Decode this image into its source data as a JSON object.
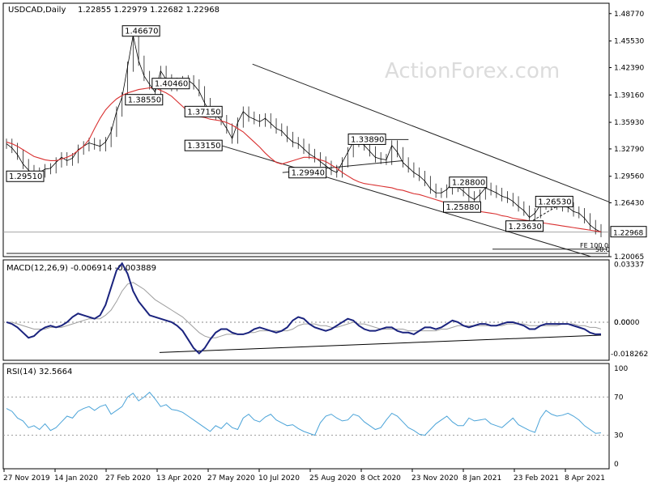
{
  "header": {
    "symbol": "USDCAD,Daily",
    "ohlc": "1.22855 1.22979 1.22682 1.22968"
  },
  "watermark": "ActionForex.com",
  "chart_data": [
    {
      "type": "line",
      "name": "price",
      "ylim": [
        1.2007,
        1.4999
      ],
      "y_ticks": [
        "1.48770",
        "1.45530",
        "1.42390",
        "1.39160",
        "1.35930",
        "1.32790",
        "1.29560",
        "1.26430",
        "1.22968",
        "1.20065"
      ],
      "current_price": "1.22968",
      "series_close": [
        1.334,
        1.329,
        1.321,
        1.31,
        1.303,
        1.296,
        1.3,
        1.304,
        1.305,
        1.312,
        1.318,
        1.314,
        1.317,
        1.327,
        1.331,
        1.335,
        1.333,
        1.331,
        1.336,
        1.348,
        1.372,
        1.389,
        1.425,
        1.462,
        1.432,
        1.414,
        1.404,
        1.395,
        1.42,
        1.41,
        1.402,
        1.406,
        1.408,
        1.409,
        1.404,
        1.396,
        1.382,
        1.371,
        1.368,
        1.362,
        1.352,
        1.34,
        1.359,
        1.372,
        1.366,
        1.363,
        1.36,
        1.364,
        1.358,
        1.352,
        1.349,
        1.342,
        1.336,
        1.334,
        1.328,
        1.322,
        1.318,
        1.313,
        1.308,
        1.303,
        1.3,
        1.312,
        1.324,
        1.336,
        1.338,
        1.332,
        1.325,
        1.318,
        1.316,
        1.315,
        1.332,
        1.324,
        1.312,
        1.306,
        1.3,
        1.296,
        1.29,
        1.281,
        1.276,
        1.276,
        1.28,
        1.288,
        1.283,
        1.278,
        1.272,
        1.268,
        1.274,
        1.282,
        1.279,
        1.276,
        1.272,
        1.27,
        1.266,
        1.26,
        1.255,
        1.247,
        1.252,
        1.262,
        1.265,
        1.262,
        1.262,
        1.26,
        1.259,
        1.254,
        1.252,
        1.246,
        1.238,
        1.233,
        1.2297
      ],
      "ma_red": [
        1.336,
        1.334,
        1.331,
        1.327,
        1.323,
        1.319,
        1.317,
        1.315,
        1.314,
        1.314,
        1.316,
        1.318,
        1.321,
        1.326,
        1.331,
        1.339,
        1.352,
        1.364,
        1.374,
        1.381,
        1.387,
        1.391,
        1.394,
        1.396,
        1.398,
        1.399,
        1.4,
        1.4,
        1.397,
        1.394,
        1.39,
        1.384,
        1.378,
        1.372,
        1.368,
        1.366,
        1.365,
        1.363,
        1.362,
        1.361,
        1.359,
        1.356,
        1.352,
        1.348,
        1.342,
        1.336,
        1.33,
        1.323,
        1.317,
        1.312,
        1.31,
        1.312,
        1.314,
        1.316,
        1.318,
        1.318,
        1.317,
        1.315,
        1.313,
        1.309,
        1.305,
        1.3,
        1.296,
        1.292,
        1.289,
        1.287,
        1.286,
        1.285,
        1.284,
        1.283,
        1.282,
        1.28,
        1.279,
        1.277,
        1.275,
        1.274,
        1.272,
        1.27,
        1.268,
        1.266,
        1.264,
        1.262,
        1.26,
        1.258,
        1.256,
        1.255,
        1.254,
        1.253,
        1.252,
        1.251,
        1.249,
        1.248,
        1.246,
        1.245,
        1.244,
        1.243,
        1.242,
        1.241,
        1.24,
        1.239,
        1.238,
        1.237,
        1.236,
        1.235,
        1.234,
        1.233,
        1.232,
        1.231,
        1.23
      ],
      "annotations": [
        {
          "label": "1.46670",
          "price": 1.4667
        },
        {
          "label": "1.40460",
          "price": 1.4046
        },
        {
          "label": "1.38550",
          "price": 1.3855
        },
        {
          "label": "1.37150",
          "price": 1.3715
        },
        {
          "label": "1.33150",
          "price": 1.3315
        },
        {
          "label": "1.33890",
          "price": 1.3389
        },
        {
          "label": "1.29940",
          "price": 1.2994
        },
        {
          "label": "1.29510",
          "price": 1.2951
        },
        {
          "label": "1.28800",
          "price": 1.288
        },
        {
          "label": "1.25880",
          "price": 1.2588
        },
        {
          "label": "1.26530",
          "price": 1.2653
        },
        {
          "label": "1.23630",
          "price": 1.2363
        }
      ],
      "fib_labels": [
        "FE 100.0",
        "50.0"
      ],
      "colors": {
        "price": "#000000",
        "ma": "#d93030",
        "channel": "#000000",
        "grid": "#9a9a9a"
      }
    },
    {
      "type": "line",
      "name": "macd",
      "title": "MACD(12,26,9) -0.006914 -0.003889",
      "y_ticks": [
        "0.03337",
        "0.00",
        "0.0000",
        "-0.018262"
      ],
      "macd": [
        0.0,
        -0.001,
        -0.003,
        -0.006,
        -0.009,
        -0.008,
        -0.005,
        -0.003,
        -0.002,
        -0.003,
        -0.002,
        0.0,
        0.003,
        0.005,
        0.004,
        0.003,
        0.002,
        0.004,
        0.01,
        0.02,
        0.03,
        0.034,
        0.028,
        0.018,
        0.012,
        0.008,
        0.004,
        0.003,
        0.002,
        0.001,
        0.0,
        -0.002,
        -0.005,
        -0.01,
        -0.015,
        -0.018,
        -0.015,
        -0.01,
        -0.006,
        -0.004,
        -0.004,
        -0.006,
        -0.007,
        -0.007,
        -0.006,
        -0.004,
        -0.003,
        -0.004,
        -0.005,
        -0.006,
        -0.005,
        -0.003,
        0.001,
        0.003,
        0.002,
        -0.001,
        -0.003,
        -0.004,
        -0.005,
        -0.004,
        -0.002,
        0.0,
        0.002,
        0.001,
        -0.002,
        -0.004,
        -0.005,
        -0.005,
        -0.004,
        -0.003,
        -0.003,
        -0.005,
        -0.006,
        -0.006,
        -0.007,
        -0.005,
        -0.003,
        -0.003,
        -0.004,
        -0.003,
        -0.001,
        0.001,
        0.0,
        -0.002,
        -0.003,
        -0.002,
        -0.001,
        -0.001,
        -0.002,
        -0.002,
        -0.001,
        0.0,
        0.0,
        -0.001,
        -0.002,
        -0.004,
        -0.004,
        -0.002,
        -0.001,
        -0.001,
        -0.001,
        -0.001,
        -0.001,
        -0.002,
        -0.003,
        -0.004,
        -0.006,
        -0.007,
        -0.0069
      ],
      "signal": [
        0.0,
        0.0,
        -0.001,
        -0.002,
        -0.003,
        -0.004,
        -0.004,
        -0.004,
        -0.003,
        -0.003,
        -0.003,
        -0.002,
        -0.001,
        0.0,
        0.001,
        0.002,
        0.002,
        0.002,
        0.004,
        0.007,
        0.012,
        0.018,
        0.022,
        0.023,
        0.021,
        0.019,
        0.016,
        0.013,
        0.011,
        0.009,
        0.007,
        0.005,
        0.003,
        0.0,
        -0.003,
        -0.006,
        -0.008,
        -0.009,
        -0.009,
        -0.008,
        -0.007,
        -0.007,
        -0.007,
        -0.007,
        -0.006,
        -0.006,
        -0.005,
        -0.005,
        -0.005,
        -0.005,
        -0.005,
        -0.005,
        -0.004,
        -0.002,
        -0.001,
        -0.001,
        -0.001,
        -0.002,
        -0.002,
        -0.003,
        -0.003,
        -0.002,
        -0.001,
        0.0,
        -0.001,
        -0.001,
        -0.002,
        -0.003,
        -0.004,
        -0.004,
        -0.004,
        -0.004,
        -0.004,
        -0.005,
        -0.005,
        -0.005,
        -0.005,
        -0.005,
        -0.005,
        -0.004,
        -0.004,
        -0.003,
        -0.002,
        -0.002,
        -0.002,
        -0.002,
        -0.002,
        -0.002,
        -0.002,
        -0.002,
        -0.002,
        -0.001,
        -0.001,
        -0.001,
        -0.001,
        -0.002,
        -0.002,
        -0.002,
        -0.002,
        -0.002,
        -0.002,
        -0.001,
        -0.001,
        -0.001,
        -0.002,
        -0.002,
        -0.003,
        -0.003,
        -0.0039
      ],
      "colors": {
        "macd": "#1a237e",
        "signal": "#9e9e9e"
      }
    },
    {
      "type": "line",
      "name": "rsi",
      "title": "RSI(14) 32.5664",
      "ylim": [
        0,
        100
      ],
      "y_ticks": [
        "100",
        "70",
        "30",
        "0"
      ],
      "values": [
        58,
        55,
        48,
        45,
        38,
        40,
        36,
        42,
        35,
        38,
        44,
        50,
        48,
        55,
        58,
        60,
        56,
        60,
        62,
        52,
        56,
        60,
        70,
        74,
        66,
        70,
        75,
        68,
        60,
        62,
        57,
        56,
        54,
        50,
        46,
        42,
        38,
        34,
        40,
        37,
        43,
        38,
        36,
        48,
        52,
        46,
        44,
        49,
        52,
        46,
        43,
        40,
        41,
        37,
        34,
        32,
        30,
        43,
        50,
        52,
        48,
        45,
        46,
        52,
        50,
        44,
        40,
        36,
        38,
        46,
        53,
        50,
        44,
        38,
        35,
        31,
        30,
        36,
        42,
        46,
        50,
        44,
        40,
        40,
        48,
        45,
        46,
        47,
        42,
        40,
        38,
        43,
        48,
        41,
        38,
        35,
        33,
        48,
        56,
        52,
        50,
        51,
        53,
        50,
        46,
        40,
        36,
        32,
        32.57
      ],
      "color": "#4aa3d8"
    }
  ],
  "x_axis": {
    "labels": [
      "27 Nov 2019",
      "14 Jan 2020",
      "27 Feb 2020",
      "13 Apr 2020",
      "27 May 2020",
      "10 Jul 2020",
      "25 Aug 2020",
      "8 Oct 2020",
      "23 Nov 2020",
      "8 Jan 2021",
      "23 Feb 2021",
      "8 Apr 2021"
    ]
  }
}
